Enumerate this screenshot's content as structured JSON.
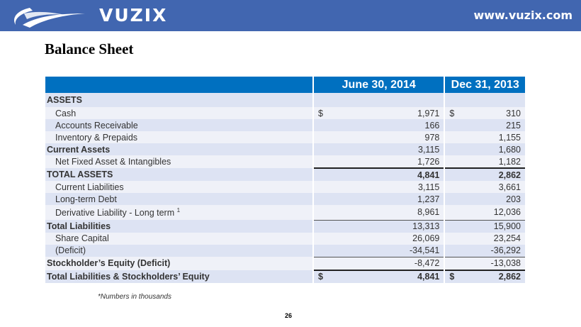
{
  "header": {
    "brand": "VUZIX",
    "url": "www.vuzix.com",
    "brand_color": "#4166b0"
  },
  "title": "Balance Sheet",
  "table": {
    "columns": [
      "June 30, 2014",
      "Dec 31, 2013"
    ],
    "header_color": "#0070c0",
    "rows": [
      {
        "label": "ASSETS",
        "a_cur": "",
        "a": "",
        "b_cur": "",
        "b": ""
      },
      {
        "label": "Cash",
        "a_cur": "$",
        "a": "1,971",
        "b_cur": "$",
        "b": "310"
      },
      {
        "label": "Accounts Receivable",
        "a_cur": "",
        "a": "166",
        "b_cur": "",
        "b": "215"
      },
      {
        "label": "Inventory & Prepaids",
        "a_cur": "",
        "a": "978",
        "b_cur": "",
        "b": "1,155"
      },
      {
        "label": "Current Assets",
        "a_cur": "",
        "a": "3,115",
        "b_cur": "",
        "b": "1,680"
      },
      {
        "label": "Net Fixed Asset & Intangibles",
        "a_cur": "",
        "a": "1,726",
        "b_cur": "",
        "b": "1,182"
      },
      {
        "label": "TOTAL ASSETS",
        "a_cur": "",
        "a": "4,841",
        "b_cur": "",
        "b": "2,862"
      },
      {
        "label": "Current Liabilities",
        "a_cur": "",
        "a": "3,115",
        "b_cur": "",
        "b": "3,661"
      },
      {
        "label": "Long-term Debt",
        "a_cur": "",
        "a": "1,237",
        "b_cur": "",
        "b": "203"
      },
      {
        "label": "Derivative Liability - Long term",
        "footnote": "1",
        "a_cur": "",
        "a": "8,961",
        "b_cur": "",
        "b": "12,036"
      },
      {
        "label": "Total Liabilities",
        "a_cur": "",
        "a": "13,313",
        "b_cur": "",
        "b": "15,900"
      },
      {
        "label": "Share Capital",
        "a_cur": "",
        "a": "26,069",
        "b_cur": "",
        "b": "23,254"
      },
      {
        "label": "(Deficit)",
        "a_cur": "",
        "a": "-34,541",
        "b_cur": "",
        "b": "-36,292"
      },
      {
        "label": "Stockholder’s Equity (Deficit)",
        "a_cur": "",
        "a": "-8,472",
        "b_cur": "",
        "b": "-13,038"
      },
      {
        "label": "Total Liabilities & Stockholders’ Equity",
        "a_cur": "$",
        "a": "4,841",
        "b_cur": "$",
        "b": "2,862"
      }
    ]
  },
  "note": "*Numbers in thousands",
  "page_number": "26"
}
